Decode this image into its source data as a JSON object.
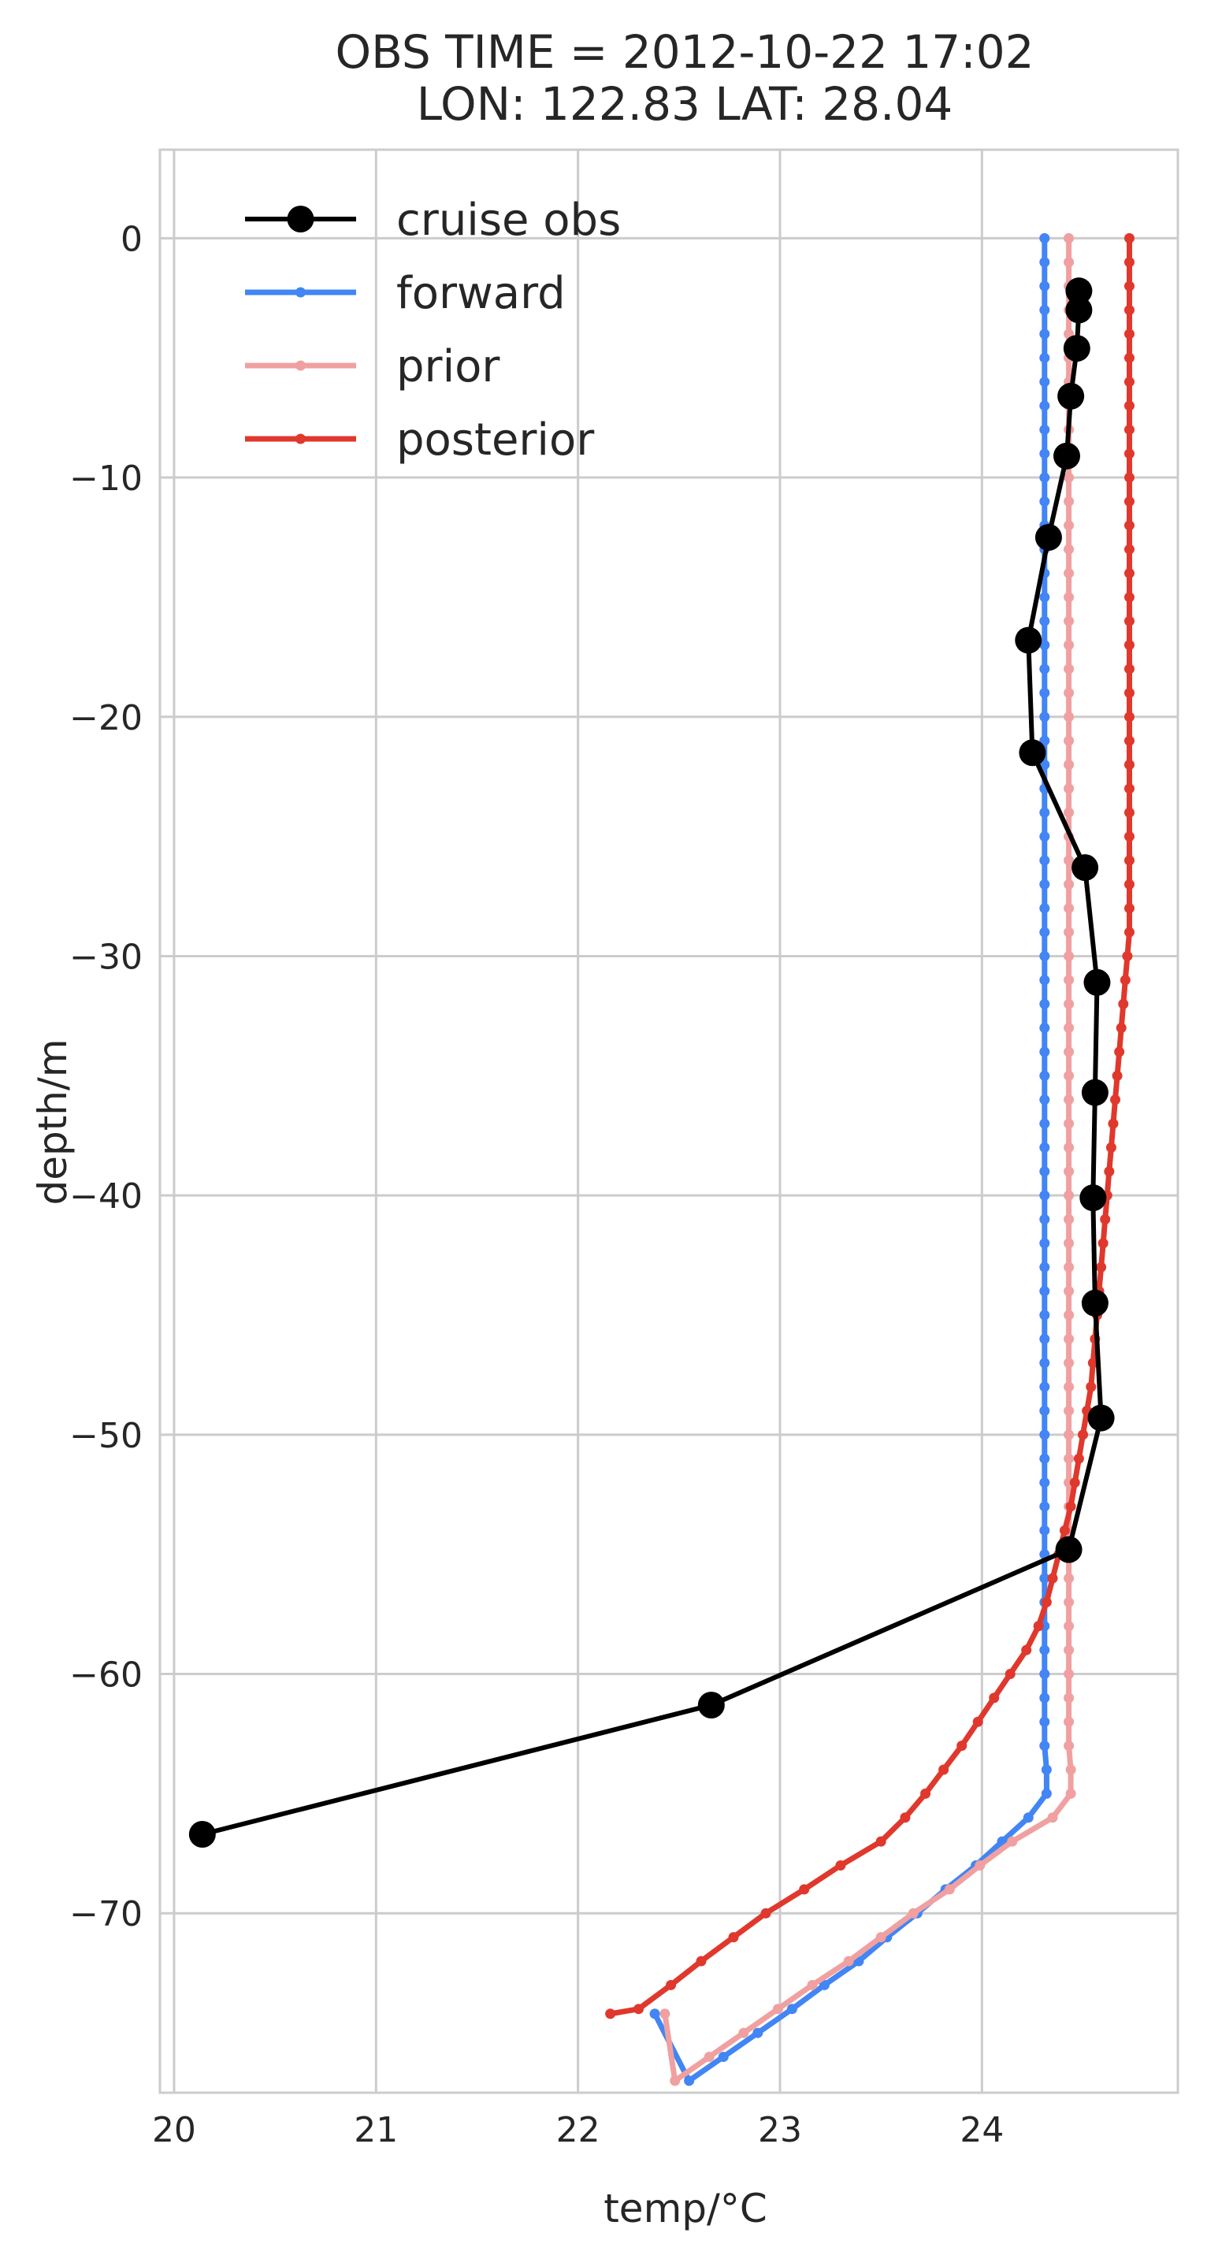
{
  "chart_data": {
    "type": "line",
    "title": "OBS TIME = 2012-10-22 17:02",
    "subtitle": "LON: 122.83 LAT: 28.04",
    "xlabel": "temp/°C",
    "ylabel": "depth/m",
    "xlim": [
      19.93,
      24.97
    ],
    "ylim": [
      -77.5,
      3.7
    ],
    "xticks": [
      20,
      21,
      22,
      23,
      24
    ],
    "xtick_labels": [
      "20",
      "21",
      "22",
      "23",
      "24"
    ],
    "yticks": [
      0,
      -10,
      -20,
      -30,
      -40,
      -50,
      -60,
      -70
    ],
    "ytick_labels": [
      "0",
      "−10",
      "−20",
      "−30",
      "−40",
      "−50",
      "−60",
      "−70"
    ],
    "grid": true,
    "legend_position": "top-left",
    "series": [
      {
        "name": "cruise obs",
        "color": "#000000",
        "marker": "large-circle",
        "points": [
          [
            24.48,
            -2.2
          ],
          [
            24.48,
            -3.0
          ],
          [
            24.47,
            -4.6
          ],
          [
            24.44,
            -6.6
          ],
          [
            24.42,
            -9.1
          ],
          [
            24.33,
            -12.5
          ],
          [
            24.23,
            -16.8
          ],
          [
            24.25,
            -21.5
          ],
          [
            24.51,
            -26.3
          ],
          [
            24.57,
            -31.1
          ],
          [
            24.56,
            -35.7
          ],
          [
            24.55,
            -40.1
          ],
          [
            24.56,
            -44.5
          ],
          [
            24.59,
            -49.3
          ],
          [
            24.43,
            -54.8
          ],
          [
            22.66,
            -61.3
          ],
          [
            20.14,
            -66.7
          ]
        ]
      },
      {
        "name": "forward",
        "color": "#4285F4",
        "marker": "small-dot",
        "points": [
          [
            24.31,
            0
          ],
          [
            24.31,
            -1
          ],
          [
            24.31,
            -2
          ],
          [
            24.31,
            -3
          ],
          [
            24.31,
            -4
          ],
          [
            24.31,
            -5
          ],
          [
            24.31,
            -6
          ],
          [
            24.31,
            -7
          ],
          [
            24.31,
            -8
          ],
          [
            24.31,
            -9
          ],
          [
            24.31,
            -10
          ],
          [
            24.31,
            -11
          ],
          [
            24.31,
            -12
          ],
          [
            24.31,
            -13
          ],
          [
            24.31,
            -14
          ],
          [
            24.31,
            -15
          ],
          [
            24.31,
            -16
          ],
          [
            24.31,
            -17
          ],
          [
            24.31,
            -18
          ],
          [
            24.31,
            -19
          ],
          [
            24.31,
            -20
          ],
          [
            24.31,
            -21
          ],
          [
            24.31,
            -22
          ],
          [
            24.31,
            -23
          ],
          [
            24.31,
            -24
          ],
          [
            24.31,
            -25
          ],
          [
            24.31,
            -26
          ],
          [
            24.31,
            -27
          ],
          [
            24.31,
            -28
          ],
          [
            24.31,
            -29
          ],
          [
            24.31,
            -30
          ],
          [
            24.31,
            -31
          ],
          [
            24.31,
            -32
          ],
          [
            24.31,
            -33
          ],
          [
            24.31,
            -34
          ],
          [
            24.31,
            -35
          ],
          [
            24.31,
            -36
          ],
          [
            24.31,
            -37
          ],
          [
            24.31,
            -38
          ],
          [
            24.31,
            -39
          ],
          [
            24.31,
            -40
          ],
          [
            24.31,
            -41
          ],
          [
            24.31,
            -42
          ],
          [
            24.31,
            -43
          ],
          [
            24.31,
            -44
          ],
          [
            24.31,
            -45
          ],
          [
            24.31,
            -46
          ],
          [
            24.31,
            -47
          ],
          [
            24.31,
            -48
          ],
          [
            24.31,
            -49
          ],
          [
            24.31,
            -50
          ],
          [
            24.31,
            -51
          ],
          [
            24.31,
            -52
          ],
          [
            24.31,
            -53
          ],
          [
            24.31,
            -54
          ],
          [
            24.31,
            -55
          ],
          [
            24.31,
            -56
          ],
          [
            24.31,
            -57
          ],
          [
            24.31,
            -58
          ],
          [
            24.31,
            -59
          ],
          [
            24.31,
            -60
          ],
          [
            24.31,
            -61
          ],
          [
            24.31,
            -62
          ],
          [
            24.31,
            -63
          ],
          [
            24.32,
            -64
          ],
          [
            24.32,
            -65
          ],
          [
            24.23,
            -66
          ],
          [
            24.1,
            -67
          ],
          [
            23.97,
            -68
          ],
          [
            23.82,
            -69
          ],
          [
            23.68,
            -70
          ],
          [
            23.53,
            -71
          ],
          [
            23.39,
            -72
          ],
          [
            23.22,
            -73
          ],
          [
            23.06,
            -74
          ],
          [
            22.89,
            -75
          ],
          [
            22.72,
            -76
          ],
          [
            22.55,
            -77
          ],
          [
            22.38,
            -74.2
          ]
        ]
      },
      {
        "name": "prior",
        "color": "#F0A0A0",
        "marker": "small-dot",
        "points": [
          [
            24.43,
            0
          ],
          [
            24.43,
            -1
          ],
          [
            24.43,
            -2
          ],
          [
            24.43,
            -3
          ],
          [
            24.43,
            -4
          ],
          [
            24.43,
            -5
          ],
          [
            24.43,
            -6
          ],
          [
            24.43,
            -7
          ],
          [
            24.43,
            -8
          ],
          [
            24.43,
            -9
          ],
          [
            24.43,
            -10
          ],
          [
            24.43,
            -11
          ],
          [
            24.43,
            -12
          ],
          [
            24.43,
            -13
          ],
          [
            24.43,
            -14
          ],
          [
            24.43,
            -15
          ],
          [
            24.43,
            -16
          ],
          [
            24.43,
            -17
          ],
          [
            24.43,
            -18
          ],
          [
            24.43,
            -19
          ],
          [
            24.43,
            -20
          ],
          [
            24.43,
            -21
          ],
          [
            24.43,
            -22
          ],
          [
            24.43,
            -23
          ],
          [
            24.43,
            -24
          ],
          [
            24.43,
            -25
          ],
          [
            24.43,
            -26
          ],
          [
            24.43,
            -27
          ],
          [
            24.43,
            -28
          ],
          [
            24.43,
            -29
          ],
          [
            24.43,
            -30
          ],
          [
            24.43,
            -31
          ],
          [
            24.43,
            -32
          ],
          [
            24.43,
            -33
          ],
          [
            24.43,
            -34
          ],
          [
            24.43,
            -35
          ],
          [
            24.43,
            -36
          ],
          [
            24.43,
            -37
          ],
          [
            24.43,
            -38
          ],
          [
            24.43,
            -39
          ],
          [
            24.43,
            -40
          ],
          [
            24.43,
            -41
          ],
          [
            24.43,
            -42
          ],
          [
            24.43,
            -43
          ],
          [
            24.43,
            -44
          ],
          [
            24.43,
            -45
          ],
          [
            24.43,
            -46
          ],
          [
            24.43,
            -47
          ],
          [
            24.43,
            -48
          ],
          [
            24.43,
            -49
          ],
          [
            24.43,
            -50
          ],
          [
            24.43,
            -51
          ],
          [
            24.43,
            -52
          ],
          [
            24.43,
            -53
          ],
          [
            24.43,
            -54
          ],
          [
            24.43,
            -55
          ],
          [
            24.43,
            -56
          ],
          [
            24.43,
            -57
          ],
          [
            24.43,
            -58
          ],
          [
            24.43,
            -59
          ],
          [
            24.43,
            -60
          ],
          [
            24.43,
            -61
          ],
          [
            24.43,
            -62
          ],
          [
            24.43,
            -63
          ],
          [
            24.44,
            -64
          ],
          [
            24.44,
            -65
          ],
          [
            24.35,
            -66
          ],
          [
            24.15,
            -67
          ],
          [
            23.99,
            -68
          ],
          [
            23.84,
            -69
          ],
          [
            23.66,
            -70
          ],
          [
            23.5,
            -71
          ],
          [
            23.34,
            -72
          ],
          [
            23.16,
            -73
          ],
          [
            22.99,
            -74
          ],
          [
            22.82,
            -75
          ],
          [
            22.65,
            -76
          ],
          [
            22.48,
            -77
          ],
          [
            22.43,
            -74.2
          ]
        ]
      },
      {
        "name": "posterior",
        "color": "#E0382D",
        "marker": "small-dot",
        "points": [
          [
            24.73,
            0
          ],
          [
            24.73,
            -1
          ],
          [
            24.73,
            -2
          ],
          [
            24.73,
            -3
          ],
          [
            24.73,
            -4
          ],
          [
            24.73,
            -5
          ],
          [
            24.73,
            -6
          ],
          [
            24.73,
            -7
          ],
          [
            24.73,
            -8
          ],
          [
            24.73,
            -9
          ],
          [
            24.73,
            -10
          ],
          [
            24.73,
            -11
          ],
          [
            24.73,
            -12
          ],
          [
            24.73,
            -13
          ],
          [
            24.73,
            -14
          ],
          [
            24.73,
            -15
          ],
          [
            24.73,
            -16
          ],
          [
            24.73,
            -17
          ],
          [
            24.73,
            -18
          ],
          [
            24.73,
            -19
          ],
          [
            24.73,
            -20
          ],
          [
            24.73,
            -21
          ],
          [
            24.73,
            -22
          ],
          [
            24.73,
            -23
          ],
          [
            24.73,
            -24
          ],
          [
            24.73,
            -25
          ],
          [
            24.73,
            -26
          ],
          [
            24.73,
            -27
          ],
          [
            24.73,
            -28
          ],
          [
            24.73,
            -29
          ],
          [
            24.72,
            -30
          ],
          [
            24.71,
            -31
          ],
          [
            24.7,
            -32
          ],
          [
            24.69,
            -33
          ],
          [
            24.68,
            -34
          ],
          [
            24.67,
            -35
          ],
          [
            24.66,
            -36
          ],
          [
            24.65,
            -37
          ],
          [
            24.64,
            -38
          ],
          [
            24.63,
            -39
          ],
          [
            24.62,
            -40
          ],
          [
            24.61,
            -41
          ],
          [
            24.6,
            -42
          ],
          [
            24.59,
            -43
          ],
          [
            24.58,
            -44
          ],
          [
            24.57,
            -45
          ],
          [
            24.56,
            -46
          ],
          [
            24.55,
            -47
          ],
          [
            24.54,
            -48
          ],
          [
            24.52,
            -49
          ],
          [
            24.5,
            -50
          ],
          [
            24.48,
            -51
          ],
          [
            24.46,
            -52
          ],
          [
            24.44,
            -53
          ],
          [
            24.41,
            -54
          ],
          [
            24.38,
            -55
          ],
          [
            24.35,
            -56
          ],
          [
            24.32,
            -57
          ],
          [
            24.28,
            -58
          ],
          [
            24.22,
            -59
          ],
          [
            24.14,
            -60
          ],
          [
            24.06,
            -61
          ],
          [
            23.98,
            -62
          ],
          [
            23.9,
            -63
          ],
          [
            23.81,
            -64
          ],
          [
            23.72,
            -65
          ],
          [
            23.62,
            -66
          ],
          [
            23.5,
            -67
          ],
          [
            23.3,
            -68
          ],
          [
            23.12,
            -69
          ],
          [
            22.93,
            -70
          ],
          [
            22.77,
            -71
          ],
          [
            22.61,
            -72
          ],
          [
            22.46,
            -73
          ],
          [
            22.3,
            -74
          ],
          [
            22.16,
            -74.2
          ]
        ]
      }
    ]
  }
}
